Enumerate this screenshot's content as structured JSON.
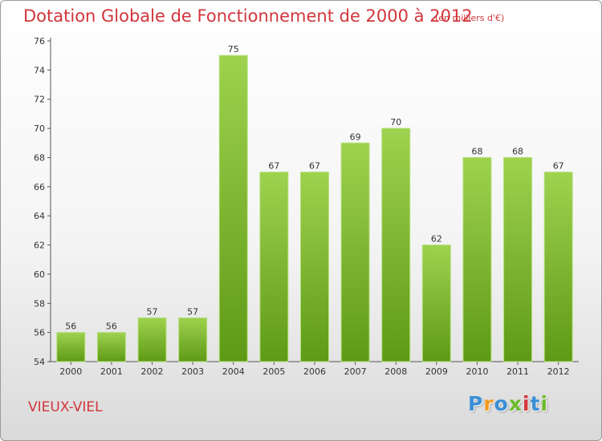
{
  "header": {
    "title": "Dotation Globale de Fonctionnement de 2000 à 2012",
    "subtitle": "(en milliers d'€)"
  },
  "footer": {
    "place": "VIEUX-VIEL",
    "logo_letters": [
      "P",
      "r",
      "o",
      "x",
      "i",
      "t",
      "i"
    ],
    "logo_colors": [
      "#3a8fd6",
      "#f39a1c",
      "#3a8fd6",
      "#6cbb2b",
      "#d1363c",
      "#3a8fd6",
      "#6cbb2b"
    ]
  },
  "chart_data": {
    "type": "bar",
    "categories": [
      "2000",
      "2001",
      "2002",
      "2003",
      "2004",
      "2005",
      "2006",
      "2007",
      "2008",
      "2009",
      "2010",
      "2011",
      "2012"
    ],
    "values": [
      56,
      56,
      57,
      57,
      75,
      67,
      67,
      69,
      70,
      62,
      68,
      68,
      67
    ],
    "ylim": [
      54,
      76
    ],
    "yticks": [
      54,
      56,
      58,
      60,
      62,
      64,
      66,
      68,
      70,
      72,
      74,
      76
    ],
    "grid": false,
    "bar_color": "#7cbf2e",
    "title": "Dotation Globale de Fonctionnement de 2000 à 2012",
    "subtitle": "(en milliers d'€)"
  }
}
